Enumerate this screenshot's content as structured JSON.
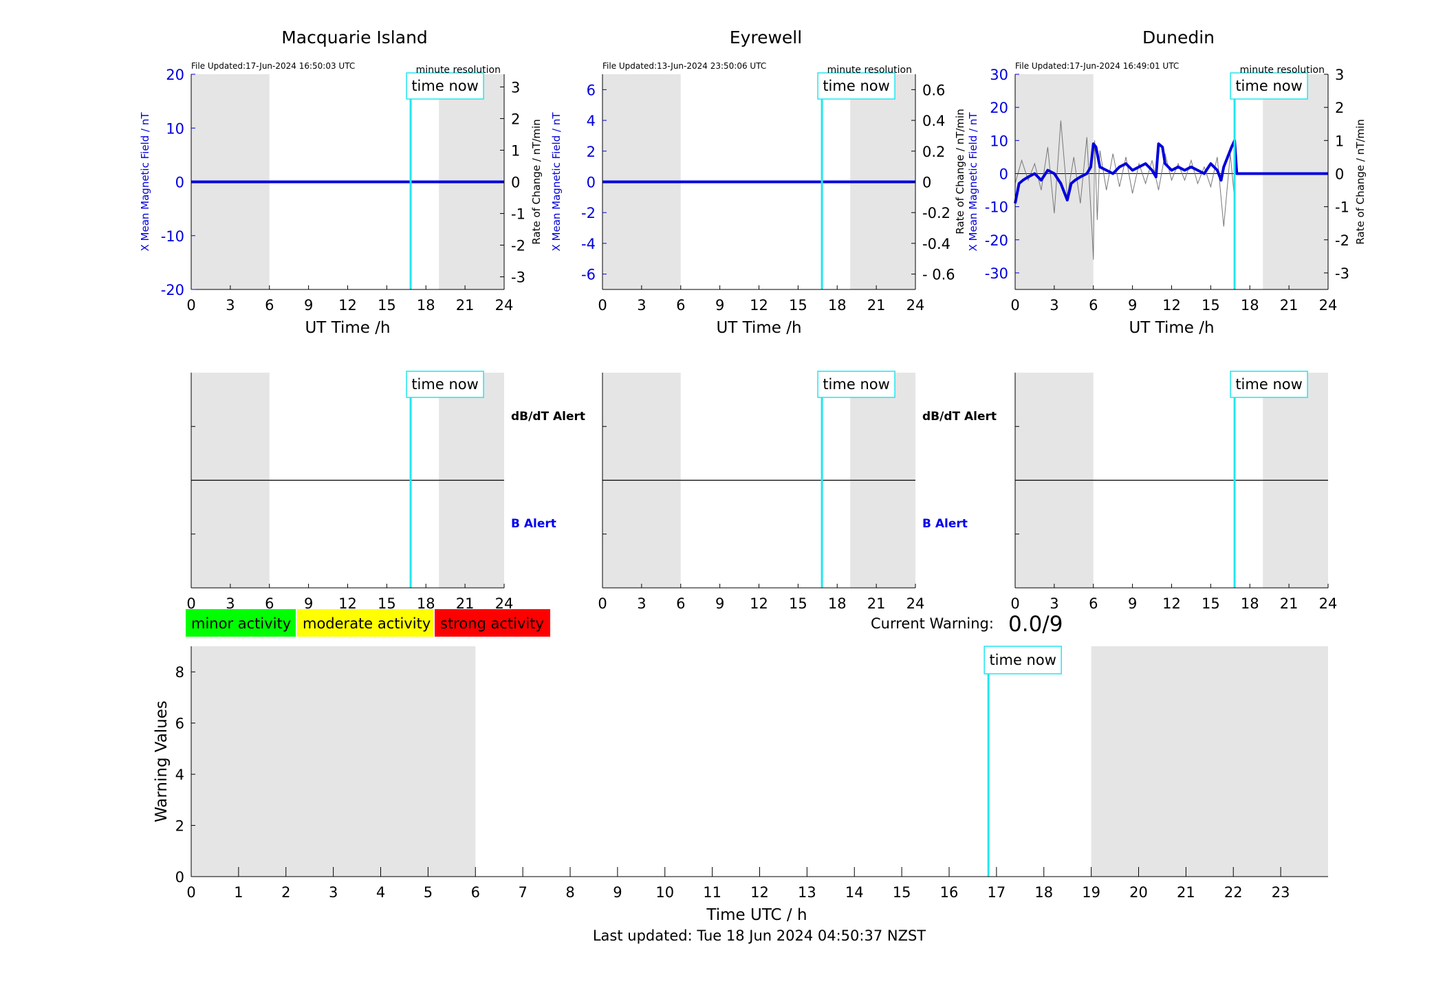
{
  "chart_data": {
    "type": "line",
    "time_now_h": 16.83,
    "time_now_label": "time now",
    "shade_ranges": [
      [
        0,
        6
      ],
      [
        19,
        24
      ]
    ],
    "stations": [
      {
        "name": "Macquarie Island",
        "file_updated": "File Updated:17-Jun-2024 16:50:03 UTC",
        "resolution": "minute resolution",
        "ylabel_left": "X Mean Magnetic Field / nT",
        "ylabel_right": "Rate of Change / nT/min",
        "xlabel": "UT Time /h",
        "ylim_left": [
          -20,
          20
        ],
        "yticks_left": [
          -20,
          -10,
          0,
          10,
          20
        ],
        "ylim_right": [
          -3.4,
          3.4
        ],
        "yticks_right": [
          -3,
          -2,
          -1,
          0,
          1,
          2,
          3
        ],
        "ytick_labels_right": [
          "-3",
          "-2",
          "-1",
          "0",
          "1",
          "2",
          "3"
        ],
        "xticks": [
          0,
          3,
          6,
          9,
          12,
          15,
          18,
          21,
          24
        ],
        "shade_right": [
          19,
          24
        ],
        "mean_field": {
          "x": [
            0,
            24
          ],
          "y": [
            0,
            0
          ]
        },
        "rate_of_change": {
          "x": [],
          "y": []
        }
      },
      {
        "name": "Eyrewell",
        "file_updated": "File Updated:13-Jun-2024 23:50:06 UTC",
        "resolution": "minute resolution",
        "ylabel_left": "X Mean Magnetic Field / nT",
        "ylabel_right": "",
        "xlabel": "UT Time /h",
        "ylim_left": [
          -7,
          7
        ],
        "yticks_left": [
          -6,
          -4,
          -2,
          0,
          2,
          4,
          6
        ],
        "ylim_right": [
          -0.7,
          0.7
        ],
        "yticks_right": [
          -0.6,
          -0.4,
          -0.2,
          0,
          0.2,
          0.4,
          0.6
        ],
        "ytick_labels_right": [
          "- 0.6",
          "-0.4",
          "-0.2",
          "0",
          "0.2",
          "0.4",
          "0.6"
        ],
        "xticks": [
          0,
          3,
          6,
          9,
          12,
          15,
          18,
          21,
          24
        ],
        "shade_right": [
          19,
          24
        ],
        "mean_field": {
          "x": [
            0,
            24
          ],
          "y": [
            0,
            0
          ]
        },
        "rate_of_change": {
          "x": [],
          "y": []
        }
      },
      {
        "name": "Dunedin",
        "file_updated": "File Updated:17-Jun-2024 16:49:01 UTC",
        "resolution": "minute resolution",
        "ylabel_left": "X Mean Magnetic Field / nT",
        "ylabel_right": "Rate of Change / nT/min",
        "ylabel_right_2": "Rate of Change / nT/min",
        "xlabel": "UT Time /h",
        "ylim_left": [
          -35,
          30
        ],
        "yticks_left": [
          -30,
          -20,
          -10,
          0,
          10,
          20,
          30
        ],
        "ylim_right": [
          -3.5,
          3
        ],
        "yticks_right": [
          -3,
          -2,
          -1,
          0,
          1,
          2,
          3
        ],
        "ytick_labels_right": [
          "-3",
          "-2",
          "-1",
          "0",
          "1",
          "2",
          "3"
        ],
        "xticks": [
          0,
          3,
          6,
          9,
          12,
          15,
          18,
          21,
          24
        ],
        "shade_right": [
          19,
          24
        ],
        "mean_field": {
          "x": [
            0,
            0.3,
            0.6,
            1,
            1.5,
            2,
            2.5,
            3,
            3.5,
            4,
            4.3,
            4.6,
            5,
            5.5,
            5.8,
            6,
            6.2,
            6.5,
            7,
            7.5,
            8,
            8.5,
            9,
            9.5,
            10,
            10.5,
            10.8,
            11,
            11.3,
            11.5,
            12,
            12.5,
            13,
            13.5,
            14,
            14.5,
            15,
            15.5,
            15.8,
            16,
            16.3,
            16.6,
            16.83,
            17,
            19,
            24
          ],
          "y": [
            -9,
            -3,
            -2,
            -1,
            0,
            -2,
            1,
            0,
            -3,
            -8,
            -3,
            -2,
            -1,
            0,
            2,
            9,
            8,
            2,
            1,
            0,
            2,
            3,
            1,
            2,
            3,
            1,
            -1,
            9,
            8,
            3,
            1,
            2,
            1,
            2,
            1,
            0,
            3,
            1,
            -2,
            2,
            5,
            8,
            10,
            0,
            0,
            0
          ]
        },
        "rate_of_change": {
          "x": [
            0,
            0.5,
            1,
            1.5,
            2,
            2.5,
            3,
            3.5,
            4,
            4.5,
            5,
            5.5,
            5.9,
            6,
            6.1,
            6.3,
            6.5,
            7,
            7.5,
            8,
            8.5,
            9,
            9.5,
            10,
            10.5,
            11,
            11.5,
            12,
            12.5,
            13,
            13.5,
            14,
            14.5,
            15,
            15.5,
            16,
            16.5,
            16.83
          ],
          "y": [
            -0.3,
            0.4,
            -0.2,
            0.3,
            -0.5,
            0.8,
            -1.2,
            1.6,
            -0.7,
            0.5,
            -0.9,
            1.1,
            -1.8,
            -2.6,
            1.0,
            -1.4,
            0.7,
            -0.5,
            0.6,
            -0.4,
            0.5,
            -0.6,
            0.3,
            -0.3,
            0.4,
            -0.5,
            0.6,
            -0.2,
            0.3,
            -0.2,
            0.4,
            -0.3,
            0.2,
            -0.4,
            0.5,
            -1.6,
            0.6,
            -0.8
          ]
        }
      }
    ],
    "alert_panel": {
      "xticks": [
        0,
        3,
        6,
        9,
        12,
        15,
        18,
        21,
        24
      ],
      "label_dbdt": "dB/dT Alert",
      "label_b": "B Alert"
    },
    "legend": [
      {
        "label": "minor activity",
        "color": "#00ff00"
      },
      {
        "label": "moderate activity",
        "color": "#ffff00"
      },
      {
        "label": "strong activity",
        "color": "#ff0000"
      }
    ],
    "current_warning_label": "Current Warning:",
    "current_warning_value": "0.0/9",
    "warning_chart": {
      "ylabel": "Warning Values",
      "xlabel": "Time UTC / h",
      "ylim": [
        0,
        9
      ],
      "yticks": [
        0,
        2,
        4,
        6,
        8
      ],
      "xlim": [
        0,
        24
      ],
      "xticks": [
        0,
        1,
        2,
        3,
        4,
        5,
        6,
        7,
        8,
        9,
        10,
        11,
        12,
        13,
        14,
        15,
        16,
        17,
        18,
        19,
        20,
        21,
        22,
        23
      ],
      "shade_ranges": [
        [
          0,
          6
        ],
        [
          19,
          24
        ]
      ],
      "values": []
    },
    "last_updated": "Last updated: Tue 18 Jun 2024 04:50:37 NZST"
  },
  "colors": {
    "shade": "#e5e5e5",
    "field_line": "#0000dd",
    "rate_line": "#777777",
    "time_now_line": "#22e5ee",
    "axis_blue": "#0000dd",
    "b_alert_label": "#0000ee"
  }
}
